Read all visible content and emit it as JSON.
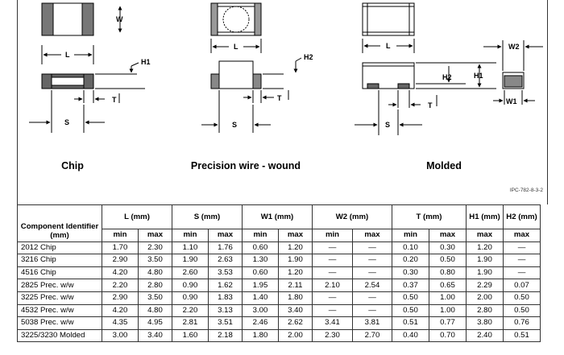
{
  "figure": {
    "captions": {
      "chip": "Chip",
      "wirewound": "Precision wire - wound",
      "molded": "Molded"
    },
    "dim_labels": {
      "W": "W",
      "L": "L",
      "H1": "H1",
      "H2": "H2",
      "T": "T",
      "S": "S",
      "W1": "W1",
      "W2": "W2"
    },
    "reference": "IPC-782-8-3-2"
  },
  "table": {
    "header_component": "Component Identifier (mm)",
    "groups": [
      "L (mm)",
      "S (mm)",
      "W1 (mm)",
      "W2 (mm)",
      "T (mm)",
      "H1 (mm)",
      "H2 (mm)"
    ],
    "sub": [
      "min",
      "max",
      "min",
      "max",
      "min",
      "max",
      "min",
      "max",
      "min",
      "max",
      "max",
      "max"
    ],
    "rows": [
      {
        "name": "2012 Chip",
        "vals": [
          "1.70",
          "2.30",
          "1.10",
          "1.76",
          "0.60",
          "1.20",
          "—",
          "—",
          "0.10",
          "0.30",
          "1.20",
          "—"
        ]
      },
      {
        "name": "3216 Chip",
        "vals": [
          "2.90",
          "3.50",
          "1.90",
          "2.63",
          "1.30",
          "1.90",
          "—",
          "—",
          "0.20",
          "0.50",
          "1.90",
          "—"
        ]
      },
      {
        "name": "4516 Chip",
        "vals": [
          "4.20",
          "4.80",
          "2.60",
          "3.53",
          "0.60",
          "1.20",
          "—",
          "—",
          "0.30",
          "0.80",
          "1.90",
          "—"
        ]
      },
      {
        "name": "2825 Prec. w/w",
        "vals": [
          "2.20",
          "2.80",
          "0.90",
          "1.62",
          "1.95",
          "2.11",
          "2.10",
          "2.54",
          "0.37",
          "0.65",
          "2.29",
          "0.07"
        ]
      },
      {
        "name": "3225 Prec. w/w",
        "vals": [
          "2.90",
          "3.50",
          "0.90",
          "1.83",
          "1.40",
          "1.80",
          "—",
          "—",
          "0.50",
          "1.00",
          "2.00",
          "0.50"
        ]
      },
      {
        "name": "4532 Prec. w/w",
        "vals": [
          "4.20",
          "4.80",
          "2.20",
          "3.13",
          "3.00",
          "3.40",
          "—",
          "—",
          "0.50",
          "1.00",
          "2.80",
          "0.50"
        ]
      },
      {
        "name": "5038 Prec. w/w",
        "vals": [
          "4.35",
          "4.95",
          "2.81",
          "3.51",
          "2.46",
          "2.62",
          "3.41",
          "3.81",
          "0.51",
          "0.77",
          "3.80",
          "0.76"
        ]
      },
      {
        "name": "3225/3230 Molded",
        "vals": [
          "3.00",
          "3.40",
          "1.60",
          "2.18",
          "1.80",
          "2.00",
          "2.30",
          "2.70",
          "0.40",
          "0.70",
          "2.40",
          "0.51"
        ]
      }
    ]
  }
}
